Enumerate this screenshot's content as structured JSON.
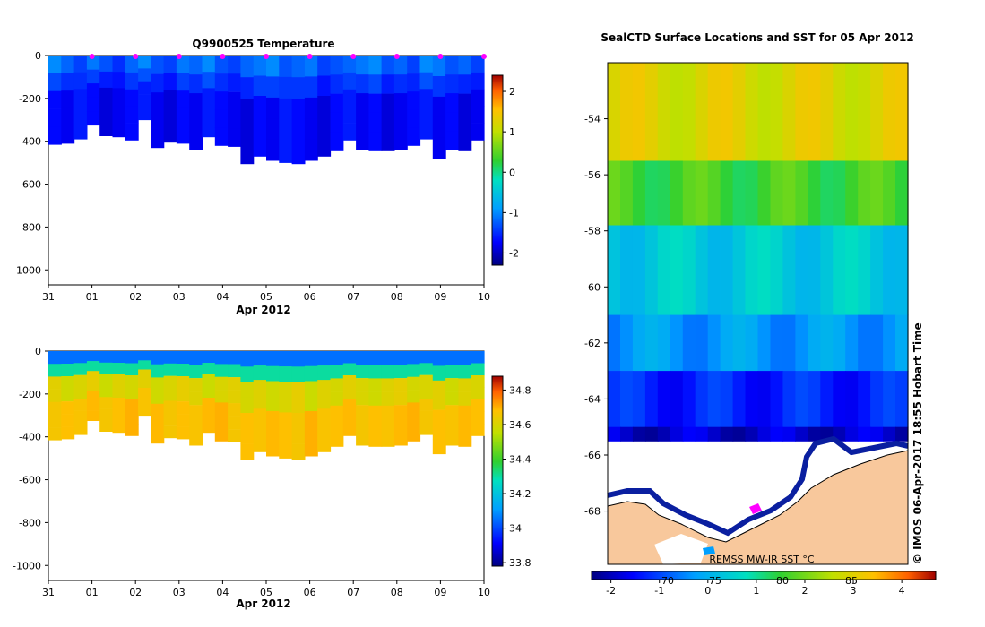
{
  "chart_data": [
    {
      "type": "heatmap",
      "title": "Q9900525  Temperature",
      "xlabel": "Apr 2012",
      "ylabel": "",
      "x_ticks": [
        "31",
        "01",
        "02",
        "03",
        "04",
        "05",
        "06",
        "07",
        "08",
        "09",
        "10"
      ],
      "y_ticks": [
        "0",
        "-200",
        "-400",
        "-600",
        "-800",
        "-1000"
      ],
      "ylim": [
        -1070,
        0
      ],
      "colorbar": {
        "range": [
          -2.3,
          2.4
        ],
        "ticks": [
          "-2",
          "-1",
          "0",
          "1",
          "2"
        ]
      },
      "profile_depths": [
        -415,
        -410,
        -390,
        -325,
        -375,
        -380,
        -395,
        -300,
        -430,
        -405,
        -410,
        -440,
        -380,
        -420,
        -425,
        -505,
        -470,
        -490,
        -500,
        -505,
        -490,
        -470,
        -445,
        -395,
        -440,
        -445,
        -445,
        -440,
        -420,
        -390,
        -480,
        -440,
        -445,
        -395
      ],
      "cast_markers_days": [
        1,
        2,
        3,
        4,
        5,
        6,
        7,
        8,
        9,
        10
      ],
      "layer_values_surface": [
        -1.0,
        -1.2,
        -1.4,
        -1.1,
        -1.3,
        -1.5,
        -1.2,
        -1.0,
        -1.3,
        -1.4,
        -1.1,
        -1.2,
        -1.0,
        -1.3,
        -1.4,
        -1.2,
        -1.1,
        -1.0,
        -1.3,
        -1.2,
        -1.1,
        -1.4,
        -1.3,
        -1.2,
        -1.1,
        -1.0,
        -1.3,
        -1.2,
        -1.4,
        -1.0,
        -1.1,
        -1.3,
        -1.2,
        -1.4
      ],
      "layer_values_deep": [
        -1.7,
        -1.8,
        -1.6,
        -1.7,
        -1.9,
        -1.8,
        -1.7,
        -1.6,
        -1.8,
        -1.9,
        -1.7,
        -1.8,
        -1.6,
        -1.7,
        -1.8,
        -1.9,
        -1.7,
        -1.8,
        -1.6,
        -1.7,
        -1.8,
        -1.9,
        -1.7,
        -1.6,
        -1.8,
        -1.7,
        -1.9,
        -1.8,
        -1.7,
        -1.6,
        -1.8,
        -1.7,
        -1.9,
        -1.8
      ]
    },
    {
      "type": "heatmap",
      "title": "",
      "xlabel": "Apr 2012",
      "ylabel": "",
      "x_ticks": [
        "31",
        "01",
        "02",
        "03",
        "04",
        "05",
        "06",
        "07",
        "08",
        "09",
        "10"
      ],
      "y_ticks": [
        "0",
        "-200",
        "-400",
        "-600",
        "-800",
        "-1000"
      ],
      "ylim": [
        -1070,
        0
      ],
      "colorbar": {
        "range": [
          33.78,
          34.88
        ],
        "ticks": [
          "33.8",
          "34",
          "34.2",
          "34.4",
          "34.6",
          "34.8"
        ]
      },
      "profile_depths": [
        -415,
        -410,
        -390,
        -325,
        -375,
        -380,
        -395,
        -300,
        -430,
        -405,
        -410,
        -440,
        -380,
        -420,
        -425,
        -505,
        -470,
        -490,
        -500,
        -505,
        -490,
        -470,
        -445,
        -395,
        -440,
        -445,
        -445,
        -440,
        -420,
        -390,
        -480,
        -440,
        -445,
        -395
      ],
      "layer_values_upper": [
        34.62,
        34.58,
        34.6,
        34.63,
        34.57,
        34.61,
        34.59,
        34.62,
        34.58,
        34.6,
        34.63,
        34.61,
        34.57,
        34.6,
        34.62,
        34.59,
        34.61,
        34.58,
        34.6,
        34.63,
        34.57,
        34.61,
        34.59,
        34.62,
        34.6,
        34.58,
        34.61,
        34.63,
        34.59,
        34.6,
        34.62,
        34.58,
        34.61,
        34.6
      ],
      "layer_values_deep": [
        34.66,
        34.68,
        34.67,
        34.69,
        34.66,
        34.68,
        34.7,
        34.67,
        34.69,
        34.66,
        34.68,
        34.67,
        34.69,
        34.7,
        34.66,
        34.68,
        34.67,
        34.69,
        34.68,
        34.66,
        34.7,
        34.67,
        34.68,
        34.69,
        34.66,
        34.68,
        34.67,
        34.69,
        34.7,
        34.66,
        34.68,
        34.67,
        34.69,
        34.68
      ]
    },
    {
      "type": "heatmap",
      "title": "SealCTD Surface Locations and SST for 05 Apr 2012",
      "xlabel": "",
      "ylabel": "",
      "y_ticks": [
        "-54",
        "-56",
        "-58",
        "-60",
        "-62",
        "-64",
        "-66",
        "-68"
      ],
      "lat_range": [
        -69.9,
        -52.0
      ],
      "colorbar": {
        "range": [
          -2.4,
          4.7
        ],
        "ticks": [
          "-2",
          "-1",
          "0",
          "1",
          "2",
          "3",
          "4"
        ],
        "faint_ticks": [
          "70",
          "75",
          "80",
          "85"
        ],
        "label": "REMSS MW-IR SST °C"
      },
      "sst_bands_by_lat": [
        {
          "lat_top": -52.0,
          "lat_bottom": -55.5,
          "sst": 2.9
        },
        {
          "lat_top": -55.5,
          "lat_bottom": -57.8,
          "sst": 1.6
        },
        {
          "lat_top": -57.8,
          "lat_bottom": -61.0,
          "sst": 0.4
        },
        {
          "lat_top": -61.0,
          "lat_bottom": -63.0,
          "sst": -0.3
        },
        {
          "lat_top": -63.0,
          "lat_bottom": -65.0,
          "sst": -1.3
        },
        {
          "lat_top": -65.0,
          "lat_bottom": -65.5,
          "sst": -1.9
        }
      ],
      "watermark": "© IMOS 06-Apr-2017 18:55 Hobart Time"
    }
  ]
}
